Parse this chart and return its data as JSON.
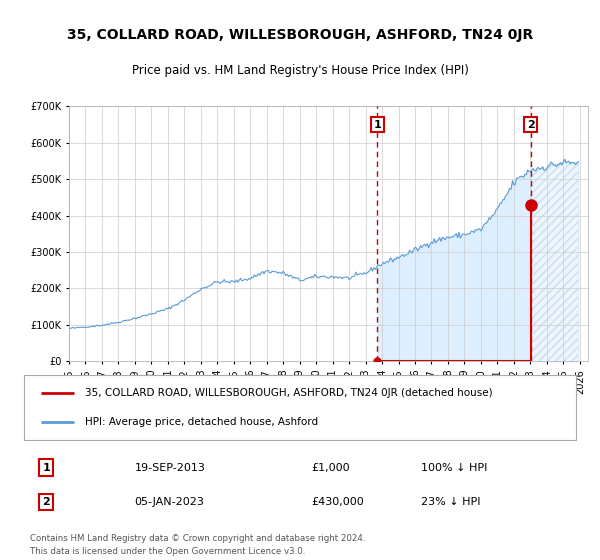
{
  "title": "35, COLLARD ROAD, WILLESBOROUGH, ASHFORD, TN24 0JR",
  "subtitle": "Price paid vs. HM Land Registry's House Price Index (HPI)",
  "ylim": [
    0,
    700000
  ],
  "yticks": [
    0,
    100000,
    200000,
    300000,
    400000,
    500000,
    600000,
    700000
  ],
  "ytick_labels": [
    "£0",
    "£100K",
    "£200K",
    "£300K",
    "£400K",
    "£500K",
    "£600K",
    "£700K"
  ],
  "xlim_start": 1995.0,
  "xlim_end": 2026.5,
  "hpi_color": "#5b9bd5",
  "hpi_fill_color": "#ddeeff",
  "price_color": "#cc0000",
  "vline_color": "#cc0000",
  "background_color": "#ffffff",
  "grid_color": "#cccccc",
  "transaction1_x": 2013.72,
  "transaction1_y": 1000,
  "transaction1_label": "1",
  "transaction1_date": "19-SEP-2013",
  "transaction1_price": "£1,000",
  "transaction1_hpi": "100% ↓ HPI",
  "transaction2_x": 2023.02,
  "transaction2_y": 430000,
  "transaction2_label": "2",
  "transaction2_date": "05-JAN-2023",
  "transaction2_price": "£430,000",
  "transaction2_hpi": "23% ↓ HPI",
  "legend_label1": "35, COLLARD ROAD, WILLESBOROUGH, ASHFORD, TN24 0JR (detached house)",
  "legend_label2": "HPI: Average price, detached house, Ashford",
  "footer1": "Contains HM Land Registry data © Crown copyright and database right 2024.",
  "footer2": "This data is licensed under the Open Government Licence v3.0."
}
